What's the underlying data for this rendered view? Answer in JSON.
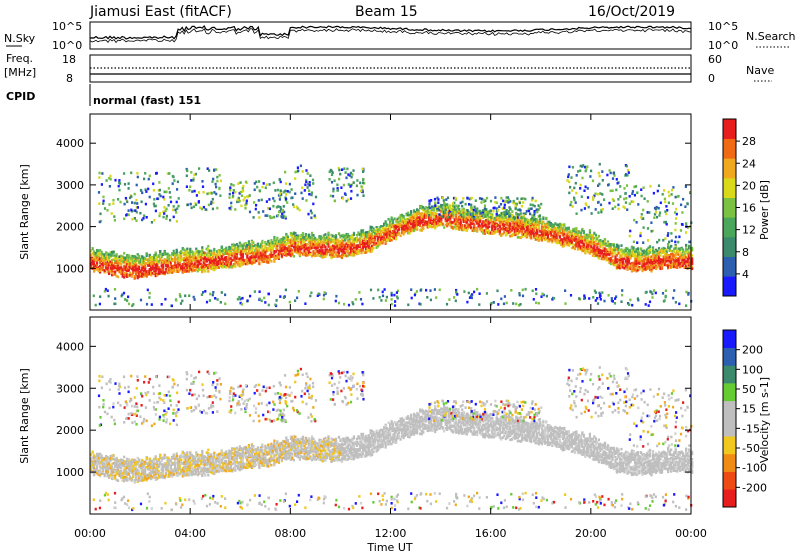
{
  "header": {
    "radar": "Jiamusi East (fitACF)",
    "beam": "Beam 15",
    "date": "16/Oct/2019"
  },
  "noise_panel": {
    "left_label": "N.Sky",
    "left_ticks": [
      "10^5",
      "10^0"
    ],
    "right_label": "N.Search",
    "right_ticks": [
      "10^5",
      "10^0"
    ]
  },
  "freq_panel": {
    "left_label_1": "Freq.",
    "left_label_2": "[MHz]",
    "left_ticks": [
      "18",
      "8"
    ],
    "right_label": "Nave",
    "right_ticks": [
      "60",
      "0"
    ]
  },
  "cpid": {
    "label": "CPID",
    "value": "normal (fast) 151"
  },
  "colors": {
    "power_scale": [
      "#1a1aff",
      "#2c5fb0",
      "#3b8a6b",
      "#4aa65a",
      "#7cc242",
      "#d9d91a",
      "#f0a81e",
      "#f06a14",
      "#e81e1e"
    ],
    "velocity_scale": [
      "#1a1aff",
      "#2c5fb0",
      "#3b8a6b",
      "#66cc33",
      "#bfbfbf",
      "#bfbfbf",
      "#f0c81e",
      "#f08c14",
      "#f04a14",
      "#e81e1e"
    ]
  },
  "chart_data": [
    {
      "type": "heatmap",
      "panel": "power",
      "ylabel": "Slant Range [km]",
      "xlabel": "Time UT",
      "x_ticks": [
        "00:00",
        "04:00",
        "08:00",
        "12:00",
        "16:00",
        "20:00",
        "00:00"
      ],
      "y_ticks": [
        "1000",
        "2000",
        "3000",
        "4000"
      ],
      "ylim": [
        0,
        4700
      ],
      "xlim_hours": [
        0,
        24
      ],
      "colorbar_label": "Power [dB]",
      "colorbar_ticks": [
        "4",
        "8",
        "12",
        "16",
        "20",
        "24",
        "28"
      ],
      "colorbar_range": [
        0,
        30
      ],
      "echo_band_center_km": {
        "hours": [
          0,
          1,
          2,
          3,
          4,
          5,
          6,
          7,
          8,
          9,
          10,
          11,
          12,
          13,
          14,
          15,
          16,
          17,
          18,
          19,
          20,
          21,
          22,
          23,
          24
        ],
        "range_km": [
          1150,
          1000,
          950,
          1050,
          1100,
          1150,
          1250,
          1300,
          1500,
          1450,
          1450,
          1550,
          1850,
          2100,
          2200,
          2100,
          2000,
          1950,
          1850,
          1700,
          1500,
          1200,
          1100,
          1200,
          1150
        ]
      }
    },
    {
      "type": "heatmap",
      "panel": "velocity",
      "ylabel": "Slant Range [km]",
      "xlabel": "Time UT",
      "x_ticks": [
        "00:00",
        "04:00",
        "08:00",
        "12:00",
        "16:00",
        "20:00",
        "00:00"
      ],
      "y_ticks": [
        "1000",
        "2000",
        "3000",
        "4000"
      ],
      "ylim": [
        0,
        4700
      ],
      "xlim_hours": [
        0,
        24
      ],
      "colorbar_label": "Velocity [m s-1]",
      "colorbar_ticks": [
        "200",
        "100",
        "50",
        "15",
        "-15",
        "-50",
        "-100",
        "-200"
      ],
      "colorbar_range": [
        -250,
        250
      ]
    }
  ],
  "x_axis_title": "Time UT"
}
